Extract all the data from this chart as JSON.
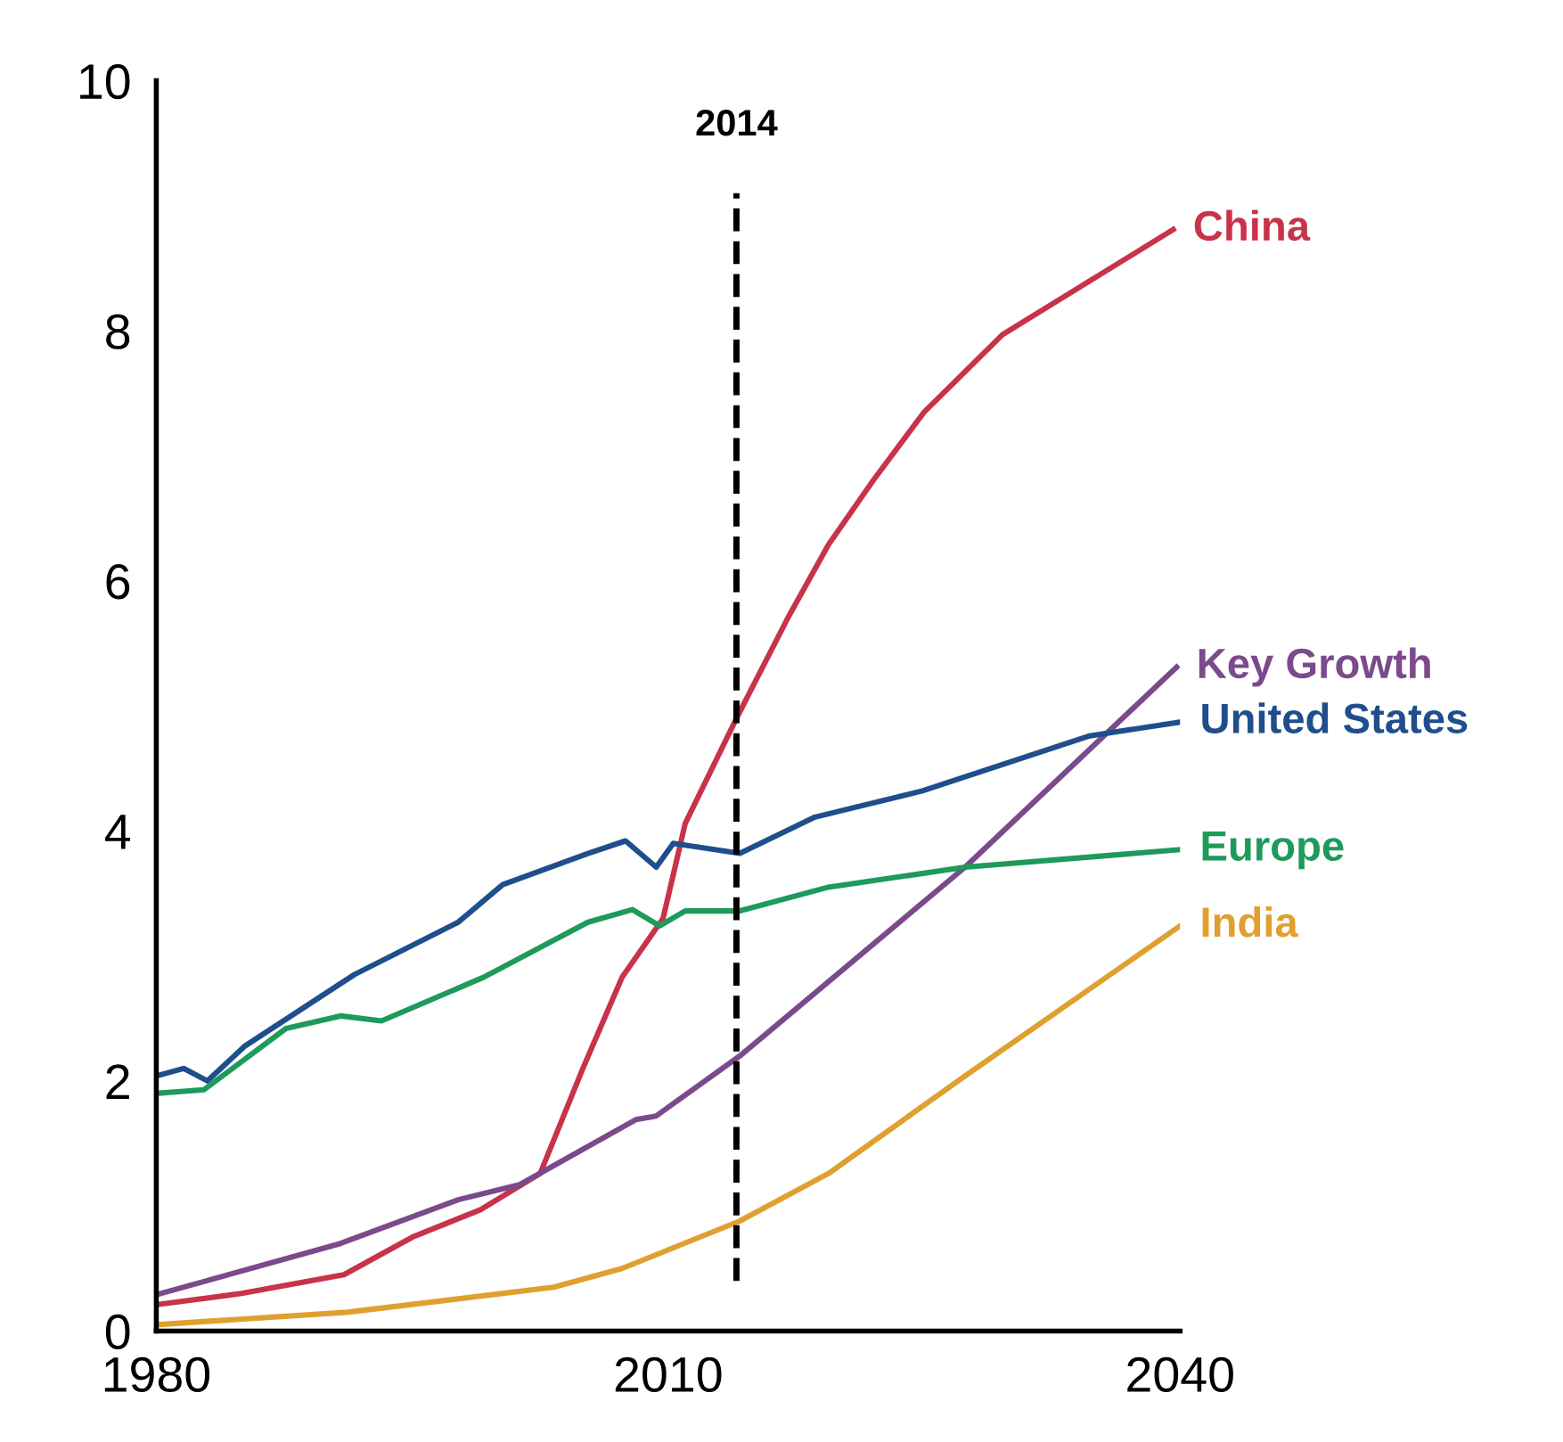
{
  "chart_data": {
    "type": "line",
    "xlim": [
      1980,
      2040
    ],
    "xticks": [
      1980,
      2010,
      2040
    ],
    "ylim": [
      0,
      10
    ],
    "yticks": [
      0,
      2,
      4,
      6,
      8,
      10
    ],
    "grid": false,
    "legend": false,
    "marker": "none",
    "line_style": "solid",
    "ref_lines": [
      {
        "axis": "x",
        "value": 2014,
        "label": "2014",
        "color": "#000000",
        "line_style": "dashed"
      }
    ],
    "series": [
      {
        "name": "China",
        "color": "#c8334a",
        "x": [
          1980,
          1985,
          1991,
          1995,
          1999,
          2002.5,
          2005,
          2007.3,
          2009.7,
          2011,
          2014,
          2017,
          2019.4,
          2022,
          2025,
          2029.6,
          2039.6
        ],
        "values": [
          0.21,
          0.3,
          0.45,
          0.75,
          0.97,
          1.26,
          2.1,
          2.83,
          3.3,
          4.06,
          4.9,
          5.7,
          6.29,
          6.8,
          7.35,
          7.97,
          8.81
        ]
      },
      {
        "name": "Key Growth",
        "color": "#7b4a8c",
        "x": [
          1980,
          1990.8,
          1997.7,
          2001.3,
          2008.1,
          2009.3,
          2014.2,
          2027.4,
          2039.8
        ],
        "values": [
          0.29,
          0.7,
          1.05,
          1.17,
          1.69,
          1.72,
          2.2,
          3.71,
          5.31
        ]
      },
      {
        "name": "United States",
        "color": "#1f4e8c",
        "x": [
          1980,
          1981.6,
          1983,
          1985.2,
          1991.6,
          1997.7,
          2000.3,
          2005.3,
          2007.5,
          2009.3,
          2010.3,
          2014.2,
          2018.6,
          2024.9,
          2034.7,
          2040
        ],
        "values": [
          2.04,
          2.1,
          2.0,
          2.28,
          2.85,
          3.27,
          3.57,
          3.82,
          3.92,
          3.71,
          3.9,
          3.82,
          4.11,
          4.32,
          4.76,
          4.87
        ]
      },
      {
        "name": "Europe",
        "color": "#1e9a5a",
        "x": [
          1980,
          1982.8,
          1987.6,
          1990.8,
          1993.2,
          1999.2,
          2005.3,
          2007.9,
          2009.5,
          2011,
          2014.2,
          2019.4,
          2027.4,
          2040
        ],
        "values": [
          1.9,
          1.93,
          2.42,
          2.52,
          2.48,
          2.83,
          3.27,
          3.37,
          3.24,
          3.36,
          3.36,
          3.55,
          3.71,
          3.85
        ]
      },
      {
        "name": "India",
        "color": "#e0a030",
        "x": [
          1980,
          1991.2,
          2003.3,
          2007.3,
          2014.2,
          2019.4,
          2027.4,
          2040
        ],
        "values": [
          0.05,
          0.15,
          0.35,
          0.5,
          0.88,
          1.26,
          2.04,
          3.24
        ]
      }
    ]
  }
}
